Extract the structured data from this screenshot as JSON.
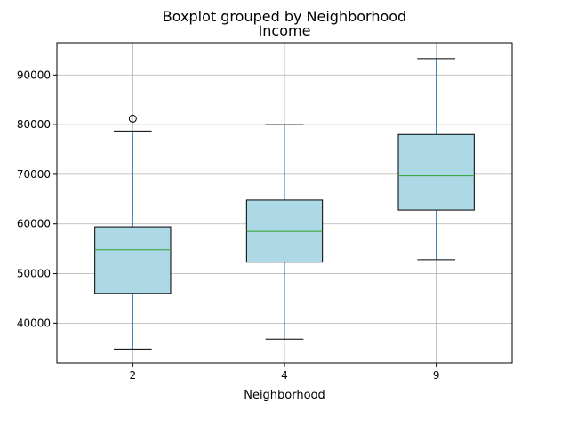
{
  "chart_data": {
    "type": "boxplot",
    "suptitle": "Boxplot grouped by Neighborhood",
    "title": "Income",
    "xlabel": "Neighborhood",
    "ylabel": "",
    "ylim": [
      32000,
      96500
    ],
    "yticks": [
      40000,
      50000,
      60000,
      70000,
      80000,
      90000
    ],
    "ytick_labels": [
      "40000",
      "50000",
      "60000",
      "70000",
      "80000",
      "90000"
    ],
    "grid": true,
    "colors": {
      "box_fill": "#add8e6",
      "box_edge": "#000000",
      "whisker": "#1f77b4",
      "median": "#2ca02c",
      "grid": "#b0b0b0"
    },
    "categories": [
      "2",
      "4",
      "9"
    ],
    "boxes": [
      {
        "category": "2",
        "whisker_low": 34800,
        "q1": 46000,
        "median": 54800,
        "q3": 59400,
        "whisker_high": 78700,
        "outliers": [
          81200
        ]
      },
      {
        "category": "4",
        "whisker_low": 36800,
        "q1": 52300,
        "median": 58500,
        "q3": 64800,
        "whisker_high": 80000,
        "outliers": []
      },
      {
        "category": "9",
        "whisker_low": 52800,
        "q1": 62800,
        "median": 69700,
        "q3": 78000,
        "whisker_high": 93300,
        "outliers": []
      }
    ]
  }
}
